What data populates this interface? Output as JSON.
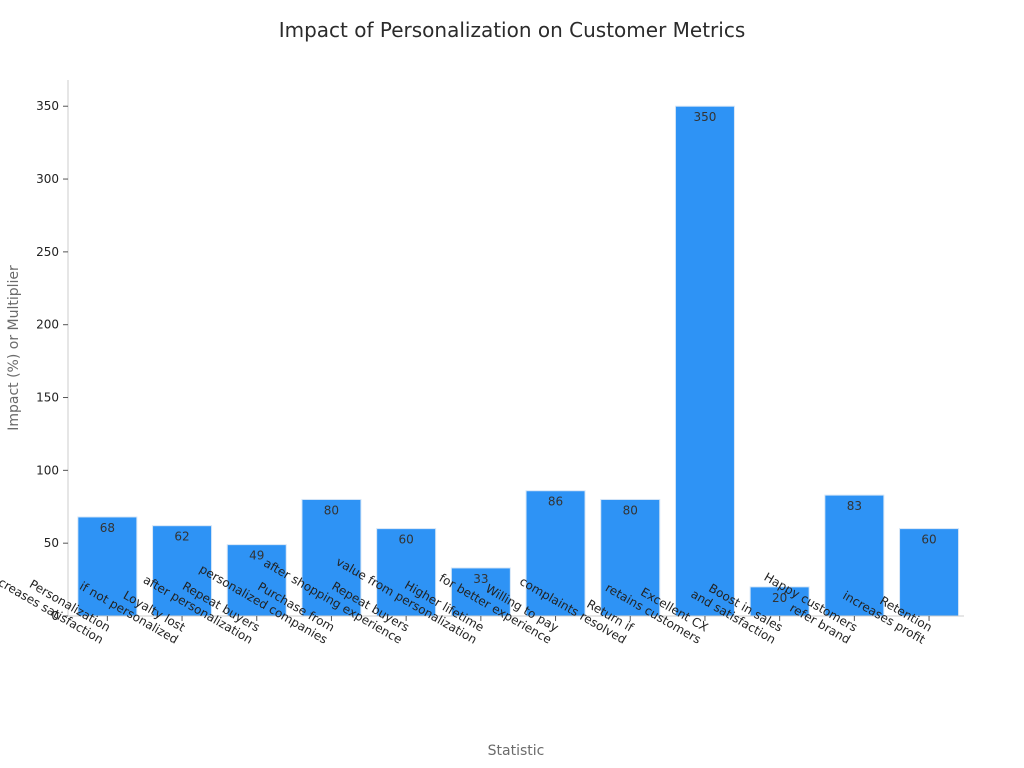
{
  "chart_data": {
    "type": "bar",
    "title": "Impact of Personalization on Customer Metrics",
    "xlabel": "Statistic",
    "ylabel": "Impact (%) or Multiplier",
    "ylim": [
      0,
      368
    ],
    "yticks": [
      0,
      50,
      100,
      150,
      200,
      250,
      300,
      350
    ],
    "grid": false,
    "bar_color": "#2e93f5",
    "categories": [
      [
        "Personalization",
        "increases satisfaction"
      ],
      [
        "Loyalty lost",
        "if not personalized"
      ],
      [
        "Repeat buyers",
        "after personalization"
      ],
      [
        "Purchase from",
        "personalized companies"
      ],
      [
        "Repeat buyers",
        "after shopping experience"
      ],
      [
        "Higher lifetime",
        "value from personalization"
      ],
      [
        "Willing to pay",
        "for better experience"
      ],
      [
        "Return if",
        "complaints resolved"
      ],
      [
        "Excellent CX",
        "retains customers"
      ],
      [
        "Boost in sales",
        "and satisfaction"
      ],
      [
        "Happy customers",
        "refer brand"
      ],
      [
        "Retention",
        "increases profit"
      ]
    ],
    "values": [
      68,
      62,
      49,
      80,
      60,
      33,
      86,
      80,
      350,
      20,
      83,
      60
    ]
  }
}
